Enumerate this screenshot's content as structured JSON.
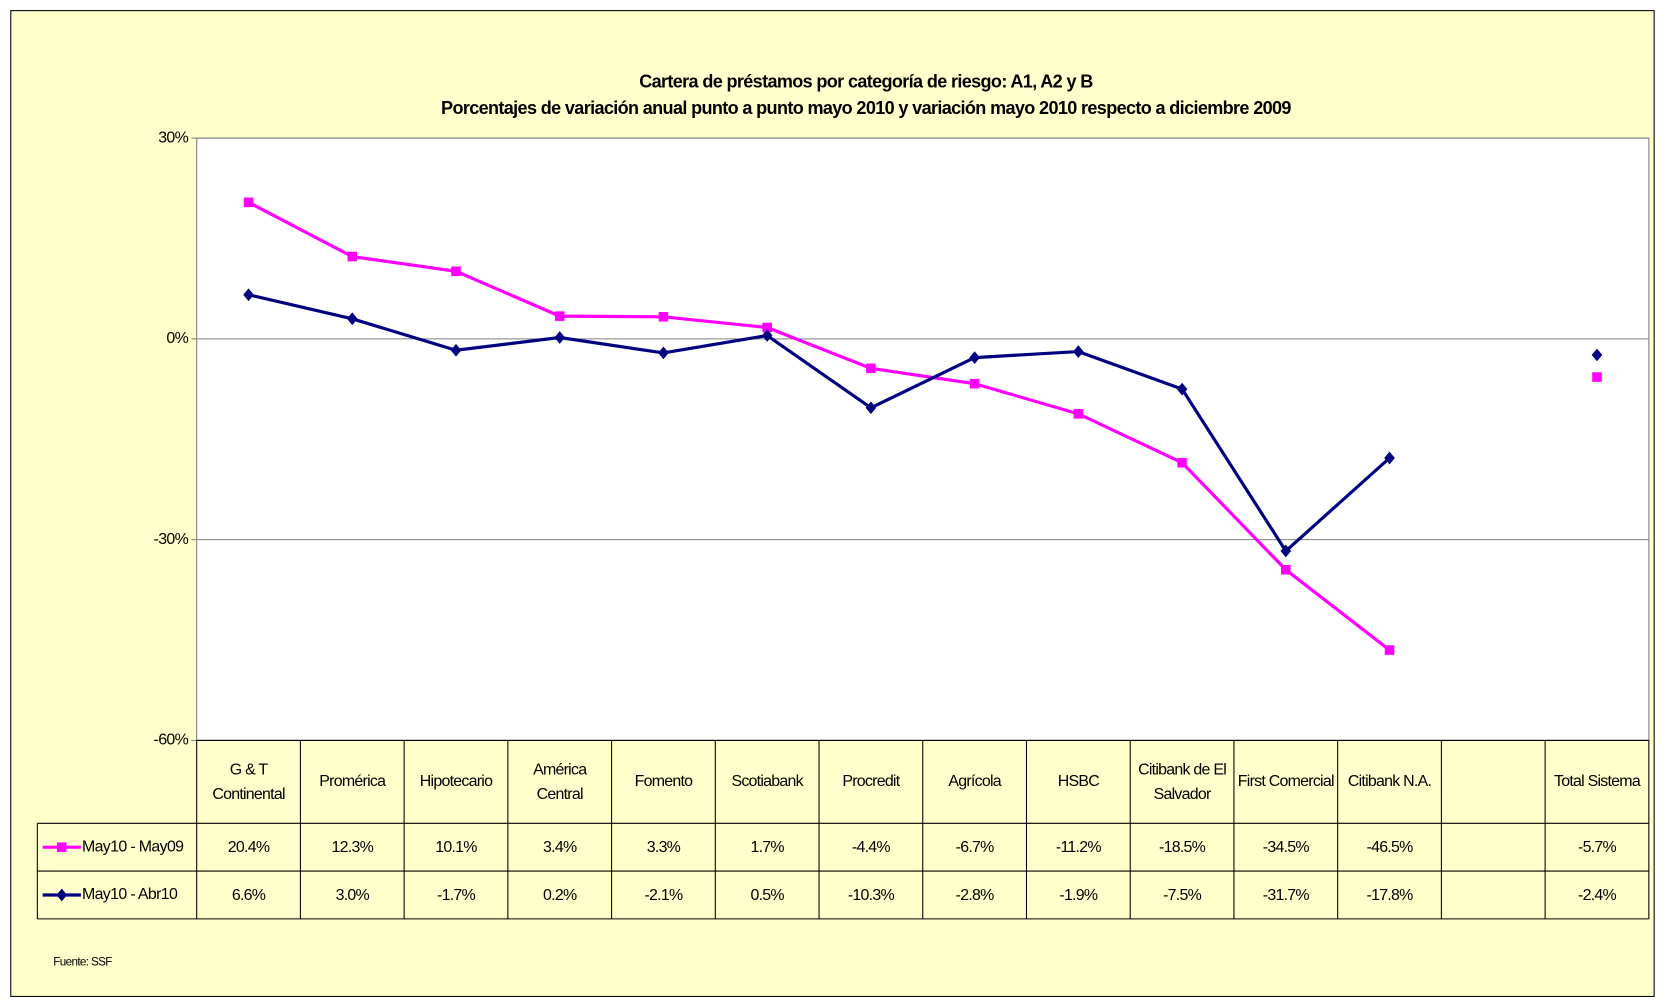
{
  "chart_data": {
    "type": "line",
    "title": "Cartera de préstamos por categoría de riesgo: A1, A2 y B",
    "subtitle": "Porcentajes de variación anual punto a punto mayo 2010 y variación mayo 2010 respecto a diciembre 2009",
    "categories": [
      "G & T Continental",
      "Promérica",
      "Hipotecario",
      "América Central",
      "Fomento",
      "Scotiabank",
      "Procredit",
      "Agrícola",
      "HSBC",
      "Citibank de El Salvador",
      "First Comercial",
      "Citibank N.A.",
      null,
      "Total Sistema"
    ],
    "series": [
      {
        "name": "May10 - May09",
        "color": "#ff00ff",
        "marker": "square",
        "values": [
          20.4,
          12.3,
          10.1,
          3.4,
          3.3,
          1.7,
          -4.4,
          -6.7,
          -11.2,
          -18.5,
          -34.5,
          -46.5,
          null,
          -5.7
        ],
        "value_labels": [
          "20.4%",
          "12.3%",
          "10.1%",
          "3.4%",
          "3.3%",
          "1.7%",
          "-4.4%",
          "-6.7%",
          "-11.2%",
          "-18.5%",
          "-34.5%",
          "-46.5%",
          null,
          "-5.7%"
        ]
      },
      {
        "name": "May10 - Abr10",
        "color": "#000080",
        "marker": "diamond",
        "values": [
          6.6,
          3.0,
          -1.7,
          0.2,
          -2.1,
          0.5,
          -10.3,
          -2.8,
          -1.9,
          -7.5,
          -31.7,
          -17.8,
          null,
          -2.4
        ],
        "value_labels": [
          "6.6%",
          "3.0%",
          "-1.7%",
          "0.2%",
          "-2.1%",
          "0.5%",
          "-10.3%",
          "-2.8%",
          "-1.9%",
          "-7.5%",
          "-31.7%",
          "-17.8%",
          null,
          "-2.4%"
        ]
      }
    ],
    "ylim": [
      -60,
      30
    ],
    "yticks": [
      {
        "value": -60,
        "label": "-60%"
      },
      {
        "value": -30,
        "label": "-30%"
      },
      {
        "value": 0,
        "label": "0%"
      },
      {
        "value": 30,
        "label": "30%"
      }
    ],
    "grid": true,
    "source": "Fuente: SSF"
  }
}
